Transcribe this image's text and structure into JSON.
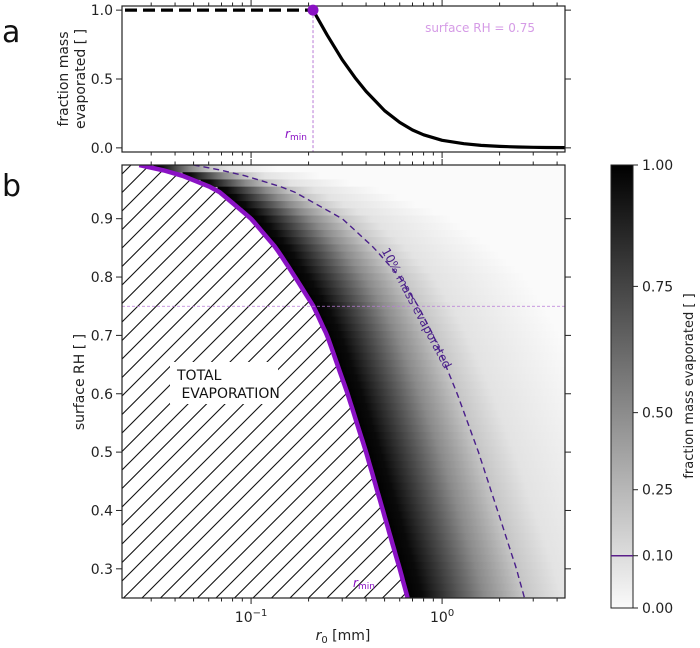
{
  "chart_data": [
    {
      "panel_label": "a",
      "type": "line",
      "xscale": "log",
      "xlim": [
        0.0211,
        4.4
      ],
      "ylim": [
        -0.03,
        1.03
      ],
      "ylabel_line1": "fraction mass",
      "ylabel_line2": "evaporated [ ]",
      "yticks": [
        0.0,
        0.5,
        1.0
      ],
      "ytick_labels": [
        "0.0",
        "0.5",
        "1.0"
      ],
      "annotation": "surface RH = 0.75",
      "rmin_label_main": "r",
      "rmin_label_sub": "min",
      "rmin_value": 0.211,
      "dashed_segment": {
        "x": [
          0.0211,
          0.211
        ],
        "y": [
          1.0,
          1.0
        ]
      },
      "curve": {
        "x": [
          0.211,
          0.25,
          0.3,
          0.35,
          0.4,
          0.5,
          0.6,
          0.7,
          0.8,
          1.0,
          1.3,
          1.6,
          2.0,
          2.5,
          3.0,
          3.5,
          4.4
        ],
        "y": [
          1.0,
          0.82,
          0.64,
          0.51,
          0.41,
          0.27,
          0.185,
          0.13,
          0.095,
          0.055,
          0.03,
          0.018,
          0.011,
          0.006,
          0.004,
          0.003,
          0.002
        ]
      }
    },
    {
      "panel_label": "b",
      "type": "heatmap",
      "xscale": "log",
      "xlim": [
        0.0211,
        4.4
      ],
      "ylim": [
        0.25,
        0.992
      ],
      "xlabel_main": "r",
      "xlabel_sub": "0",
      "xlabel_unit": " [mm]",
      "ylabel": "surface RH [ ]",
      "xtick_labels": [
        {
          "base": "10",
          "exp": "−1",
          "value": 0.1
        },
        {
          "base": "10",
          "exp": "0",
          "value": 1.0
        }
      ],
      "yticks": [
        0.3,
        0.4,
        0.5,
        0.6,
        0.7,
        0.8,
        0.9
      ],
      "ytick_labels": [
        "0.3",
        "0.4",
        "0.5",
        "0.6",
        "0.7",
        "0.8",
        "0.9"
      ],
      "reference_rh": 0.75,
      "region_label_line1": "TOTAL",
      "region_label_line2": " EVAPORATION",
      "rmin_label_main": "r",
      "rmin_label_sub": "min",
      "contour_label": "10% mass evaporated",
      "rmin_curve": {
        "rh": [
          0.99,
          0.98,
          0.95,
          0.9,
          0.85,
          0.8,
          0.75,
          0.7,
          0.6,
          0.5,
          0.4,
          0.3,
          0.25
        ],
        "r": [
          0.026,
          0.039,
          0.066,
          0.1,
          0.135,
          0.17,
          0.212,
          0.25,
          0.32,
          0.4,
          0.49,
          0.6,
          0.66
        ]
      },
      "contour_10pct": {
        "rh": [
          0.99,
          0.98,
          0.95,
          0.9,
          0.85,
          0.8,
          0.75,
          0.7,
          0.6,
          0.5,
          0.4,
          0.3,
          0.25
        ],
        "r": [
          0.05,
          0.08,
          0.16,
          0.3,
          0.44,
          0.6,
          0.75,
          0.9,
          1.2,
          1.55,
          1.95,
          2.45,
          2.7
        ]
      },
      "colorbar": {
        "label": "fraction mass evaporated [ ]",
        "ticks": [
          0.0,
          0.1,
          0.25,
          0.5,
          0.75,
          1.0
        ],
        "tick_labels": [
          "0.00",
          "0.10",
          "0.25",
          "0.50",
          "0.75",
          "1.00"
        ],
        "marker_value": 0.1,
        "marker_color": "#5b1f8a"
      }
    }
  ],
  "figure": {
    "label_a": "a",
    "label_b": "b"
  },
  "colors": {
    "rmin": "#8a12c4",
    "rmin_light": "#b97ad6",
    "annotation": "#d59be6",
    "contour": "#4a1f8a",
    "axis": "#222222"
  }
}
